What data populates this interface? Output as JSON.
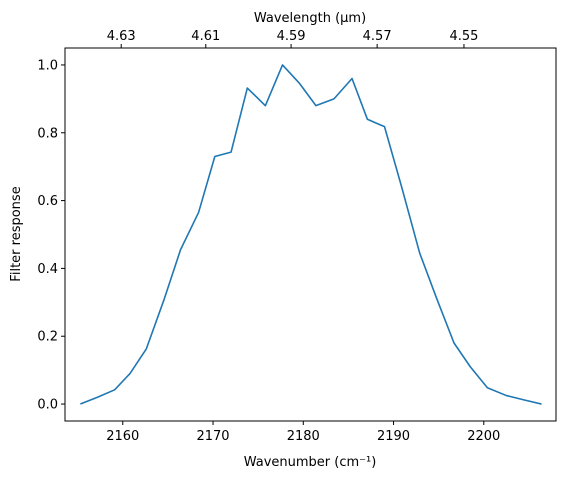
{
  "chart_data": {
    "type": "line",
    "xlabel_bottom": "Wavenumber (cm⁻¹)",
    "xlabel_top": "Wavelength (μm)",
    "ylabel": "Filter response",
    "xlim": [
      2153.6,
      2208.0
    ],
    "ylim": [
      -0.05,
      1.05
    ],
    "bottom_ticks": [
      2160,
      2170,
      2180,
      2190,
      2200
    ],
    "bottom_tick_labels": [
      "2160",
      "2170",
      "2180",
      "2190",
      "2200"
    ],
    "top_ticks": [
      4.63,
      4.61,
      4.59,
      4.57,
      4.55
    ],
    "top_tick_labels": [
      "4.63",
      "4.61",
      "4.59",
      "4.57",
      "4.55"
    ],
    "y_ticks": [
      0.0,
      0.2,
      0.4,
      0.6,
      0.8,
      1.0
    ],
    "y_tick_labels": [
      "0.0",
      "0.2",
      "0.4",
      "0.6",
      "0.8",
      "1.0"
    ],
    "grid": false,
    "series": [
      {
        "color": "#1f77b4",
        "x": [
          2155.3,
          2157.2,
          2159.1,
          2160.8,
          2162.6,
          2164.6,
          2166.4,
          2168.4,
          2170.2,
          2172.0,
          2173.8,
          2175.8,
          2177.7,
          2179.6,
          2181.4,
          2183.4,
          2185.4,
          2187.1,
          2189.0,
          2190.9,
          2192.9,
          2194.8,
          2196.7,
          2198.5,
          2200.4,
          2202.5,
          2204.5,
          2206.4
        ],
        "y": [
          0.0,
          0.02,
          0.042,
          0.09,
          0.162,
          0.31,
          0.455,
          0.565,
          0.73,
          0.743,
          0.932,
          0.88,
          1.0,
          0.945,
          0.88,
          0.9,
          0.96,
          0.84,
          0.818,
          0.64,
          0.445,
          0.31,
          0.18,
          0.11,
          0.048,
          0.025,
          0.012,
          0.0
        ]
      }
    ]
  }
}
